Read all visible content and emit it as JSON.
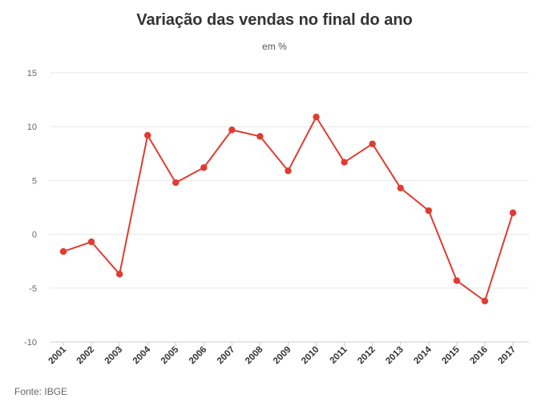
{
  "chart_data": {
    "type": "line",
    "title": "Variação das vendas no final do ano",
    "subtitle": "em %",
    "source": "Fonte: IBGE",
    "categories": [
      "2001",
      "2002",
      "2003",
      "2004",
      "2005",
      "2006",
      "2007",
      "2008",
      "2009",
      "2010",
      "2011",
      "2012",
      "2013",
      "2014",
      "2015",
      "2016",
      "2017"
    ],
    "series": [
      {
        "values": [
          -1.6,
          -0.7,
          -3.7,
          9.2,
          4.8,
          6.2,
          9.7,
          9.1,
          5.9,
          10.9,
          6.7,
          8.4,
          4.3,
          2.2,
          -4.3,
          -6.2,
          2.0
        ],
        "color": "#e03c31"
      }
    ],
    "ylim": [
      -10,
      15
    ],
    "yticks": [
      -10,
      -5,
      0,
      5,
      10,
      15
    ],
    "xlabel": "",
    "ylabel": "",
    "grid": true,
    "legend": "none"
  }
}
